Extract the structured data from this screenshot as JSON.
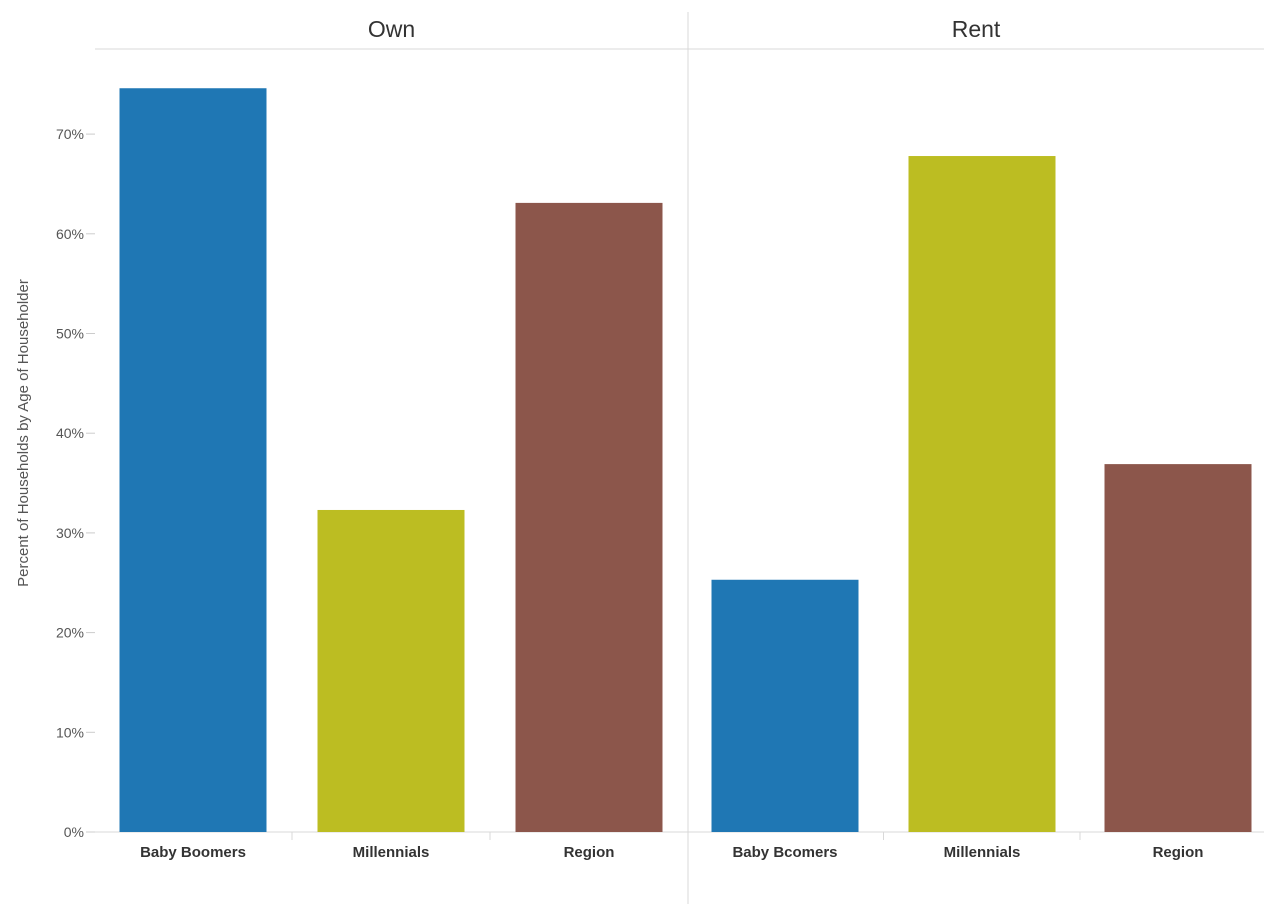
{
  "chart_data": {
    "type": "bar",
    "ylabel": "Percent of Households by Age of Householder",
    "ylim": [
      0,
      70
    ],
    "y_ticks": [
      "0%",
      "10%",
      "20%",
      "30%",
      "40%",
      "50%",
      "60%",
      "70%"
    ],
    "grid": false,
    "panels": [
      {
        "title": "Own",
        "categories": [
          "Baby Boomers",
          "Millennials",
          "Region"
        ],
        "values": [
          74.6,
          32.3,
          63.1
        ]
      },
      {
        "title": "Rent",
        "categories": [
          "Baby Bcomers",
          "Millennials",
          "Region"
        ],
        "values": [
          25.3,
          67.8,
          36.9
        ]
      }
    ],
    "colors": {
      "Baby Boomers": "#1f77b4",
      "Millennials": "#bcbd22",
      "Region": "#8c564b"
    }
  }
}
